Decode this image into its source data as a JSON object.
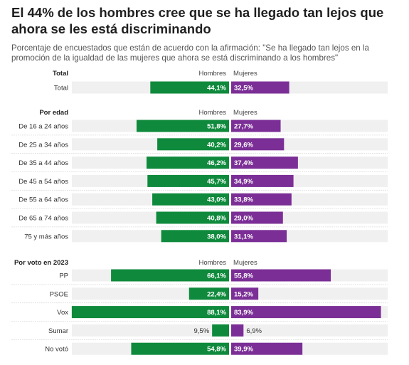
{
  "title": "El 44% de los hombres cree que se ha llegado tan lejos que ahora se les está discriminando",
  "subtitle": "Porcentaje de encuestados que están de acuerdo con la afirmación: \"Se ha llegado tan lejos en la promoción de la igualdad de las mujeres que ahora se está discriminando a los hombres\"",
  "colors": {
    "hombres": "#0f8a3c",
    "mujeres": "#7b2f96",
    "track": "#f0f0f0"
  },
  "chart_data": {
    "type": "bar",
    "orientation": "horizontal-butterfly",
    "series_names": [
      "Hombres",
      "Mujeres"
    ],
    "groups": [
      {
        "title": "Total",
        "col_left": "Hombres",
        "col_right": "Mujeres",
        "rows": [
          {
            "label": "Total",
            "hombres": 44.1,
            "mujeres": 32.5,
            "hombres_label": "44,1%",
            "mujeres_label": "32,5%"
          }
        ]
      },
      {
        "title": "Por edad",
        "col_left": "Hombres",
        "col_right": "Mujeres",
        "rows": [
          {
            "label": "De 16 a 24 años",
            "hombres": 51.8,
            "mujeres": 27.7,
            "hombres_label": "51,8%",
            "mujeres_label": "27,7%"
          },
          {
            "label": "De 25 a 34 años",
            "hombres": 40.2,
            "mujeres": 29.6,
            "hombres_label": "40,2%",
            "mujeres_label": "29,6%"
          },
          {
            "label": "De 35 a 44 años",
            "hombres": 46.2,
            "mujeres": 37.4,
            "hombres_label": "46,2%",
            "mujeres_label": "37,4%"
          },
          {
            "label": "De 45 a 54 años",
            "hombres": 45.7,
            "mujeres": 34.9,
            "hombres_label": "45,7%",
            "mujeres_label": "34,9%"
          },
          {
            "label": "De 55 a 64 años",
            "hombres": 43.0,
            "mujeres": 33.8,
            "hombres_label": "43,0%",
            "mujeres_label": "33,8%"
          },
          {
            "label": "De 65 a 74 años",
            "hombres": 40.8,
            "mujeres": 29.0,
            "hombres_label": "40,8%",
            "mujeres_label": "29,0%"
          },
          {
            "label": "75 y más años",
            "hombres": 38.0,
            "mujeres": 31.1,
            "hombres_label": "38,0%",
            "mujeres_label": "31,1%"
          }
        ]
      },
      {
        "title": "Por voto en 2023",
        "col_left": "Hombres",
        "col_right": "Mujeres",
        "rows": [
          {
            "label": "PP",
            "hombres": 66.1,
            "mujeres": 55.8,
            "hombres_label": "66,1%",
            "mujeres_label": "55,8%"
          },
          {
            "label": "PSOE",
            "hombres": 22.4,
            "mujeres": 15.2,
            "hombres_label": "22,4%",
            "mujeres_label": "15,2%"
          },
          {
            "label": "Vox",
            "hombres": 88.1,
            "mujeres": 83.9,
            "hombres_label": "88,1%",
            "mujeres_label": "83,9%"
          },
          {
            "label": "Sumar",
            "hombres": 9.5,
            "mujeres": 6.9,
            "hombres_label": "9,5%",
            "mujeres_label": "6,9%"
          },
          {
            "label": "No votó",
            "hombres": 54.8,
            "mujeres": 39.9,
            "hombres_label": "54,8%",
            "mujeres_label": "39,9%"
          }
        ]
      }
    ]
  }
}
